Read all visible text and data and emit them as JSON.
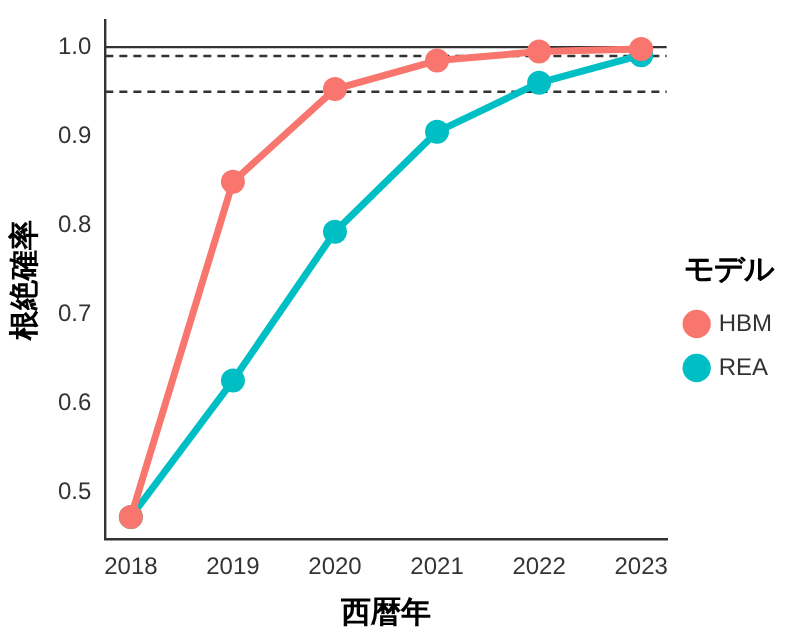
{
  "chart_data": {
    "type": "line",
    "xlabel": "西暦年",
    "ylabel": "根絶確率",
    "legend_title": "モデル",
    "legend": "right",
    "marker": "circle",
    "line_style": "solid",
    "grid": false,
    "x": [
      2018,
      2019,
      2020,
      2021,
      2022,
      2023
    ],
    "series": [
      {
        "name": "HBM",
        "color": "#f8766d",
        "values": [
          0.473,
          0.849,
          0.953,
          0.985,
          0.995,
          0.998
        ]
      },
      {
        "name": "REA",
        "color": "#00bfc4",
        "values": [
          0.473,
          0.626,
          0.793,
          0.905,
          0.96,
          0.991
        ]
      }
    ],
    "xlim": [
      2017.75,
      2023.25
    ],
    "xticks": [
      2018,
      2019,
      2020,
      2021,
      2022,
      2023
    ],
    "ylim": [
      0.448,
      1.03
    ],
    "yticks": [
      0.5,
      0.6,
      0.7,
      0.8,
      0.9,
      {
        "value": 1,
        "label": "1.0"
      }
    ],
    "ref_lines": [
      {
        "axis": "y",
        "value": 1.0,
        "color": "#333333",
        "line_style": "solid"
      },
      {
        "axis": "y",
        "value": 0.99,
        "color": "#333333",
        "line_style": "dashed"
      },
      {
        "axis": "y",
        "value": 0.95,
        "color": "#333333",
        "line_style": "dashed"
      }
    ]
  }
}
